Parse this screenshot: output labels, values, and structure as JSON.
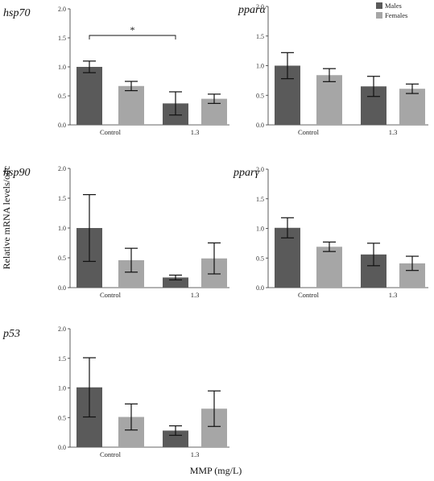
{
  "figure": {
    "y_axis_label": "Relative mRNA levels/odc",
    "x_axis_label": "MMP (mg/L)"
  },
  "legend": {
    "entries": [
      {
        "label": "Males",
        "color": "#5a5a5a"
      },
      {
        "label": "Females",
        "color": "#a6a6a6"
      }
    ]
  },
  "chart_data": [
    {
      "type": "bar",
      "title": "hsp70",
      "categories": [
        "Control",
        "1.3"
      ],
      "yticks": [
        "0.0",
        "0.5",
        "1.0",
        "1.5",
        "2.0"
      ],
      "ylim": [
        0,
        2.0
      ],
      "series": [
        {
          "name": "Males",
          "values": [
            1.0,
            0.37
          ],
          "errors": [
            0.1,
            0.2
          ]
        },
        {
          "name": "Females",
          "values": [
            0.67,
            0.45
          ],
          "errors": [
            0.08,
            0.08
          ]
        }
      ],
      "annotation": {
        "text": "*",
        "between": [
          "Control Males",
          "1.3 Males"
        ]
      }
    },
    {
      "type": "bar",
      "title": "pparα",
      "categories": [
        "Control",
        "1.3"
      ],
      "yticks": [
        "0.0",
        "0.5",
        "1.0",
        "1.5",
        "2.0"
      ],
      "ylim": [
        0,
        2.0
      ],
      "series": [
        {
          "name": "Males",
          "values": [
            1.0,
            0.65
          ],
          "errors": [
            0.22,
            0.17
          ]
        },
        {
          "name": "Females",
          "values": [
            0.84,
            0.61
          ],
          "errors": [
            0.11,
            0.08
          ]
        }
      ]
    },
    {
      "type": "bar",
      "title": "hsp90",
      "categories": [
        "Control",
        "1.3"
      ],
      "yticks": [
        "0.0",
        "0.5",
        "1.0",
        "1.5",
        "2.0"
      ],
      "ylim": [
        0,
        2.0
      ],
      "series": [
        {
          "name": "Males",
          "values": [
            1.0,
            0.17
          ],
          "errors": [
            0.56,
            0.04
          ]
        },
        {
          "name": "Females",
          "values": [
            0.46,
            0.49
          ],
          "errors": [
            0.2,
            0.26
          ]
        }
      ]
    },
    {
      "type": "bar",
      "title": "pparγ",
      "categories": [
        "Control",
        "1.3"
      ],
      "yticks": [
        "0.0",
        "0.5",
        "1.0",
        "1.5",
        "2.0"
      ],
      "ylim": [
        0,
        2.0
      ],
      "series": [
        {
          "name": "Males",
          "values": [
            1.01,
            0.56
          ],
          "errors": [
            0.17,
            0.19
          ]
        },
        {
          "name": "Females",
          "values": [
            0.69,
            0.41
          ],
          "errors": [
            0.08,
            0.12
          ]
        }
      ]
    },
    {
      "type": "bar",
      "title": "p53",
      "categories": [
        "Control",
        "1.3"
      ],
      "yticks": [
        "0.0",
        "0.5",
        "1.0",
        "1.5",
        "2.0"
      ],
      "ylim": [
        0,
        2.0
      ],
      "series": [
        {
          "name": "Males",
          "values": [
            1.01,
            0.28
          ],
          "errors": [
            0.5,
            0.08
          ]
        },
        {
          "name": "Females",
          "values": [
            0.51,
            0.65
          ],
          "errors": [
            0.22,
            0.3
          ]
        }
      ]
    }
  ]
}
